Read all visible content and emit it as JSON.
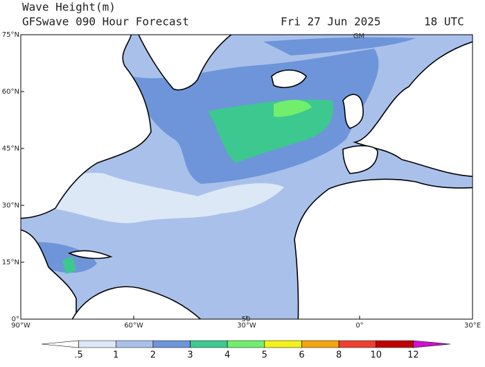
{
  "header": {
    "title": "Wave Height(m)",
    "subtitle": "GFSwave 090 Hour Forecast",
    "date": "Fri 27 Jun 2025",
    "time": "18 UTC"
  },
  "map": {
    "lat_labels": [
      "75°N",
      "60°N",
      "45°N",
      "30°N",
      "15°N",
      "0°"
    ],
    "lon_labels": [
      "90°W",
      "60°W",
      "30°W",
      "0°",
      "30°E"
    ],
    "annotations": [
      "GM",
      "50"
    ]
  },
  "colorbar": {
    "labels": [
      ".5",
      "1",
      "2",
      "3",
      "4",
      "5",
      "6",
      "8",
      "10",
      "12"
    ],
    "colors": [
      "#ffffff",
      "#dde8f6",
      "#a9c1ea",
      "#6e95d9",
      "#3dc88f",
      "#72ee6e",
      "#f2f21a",
      "#f4a40e",
      "#ee4030",
      "#c00000",
      "#d010d0"
    ]
  }
}
